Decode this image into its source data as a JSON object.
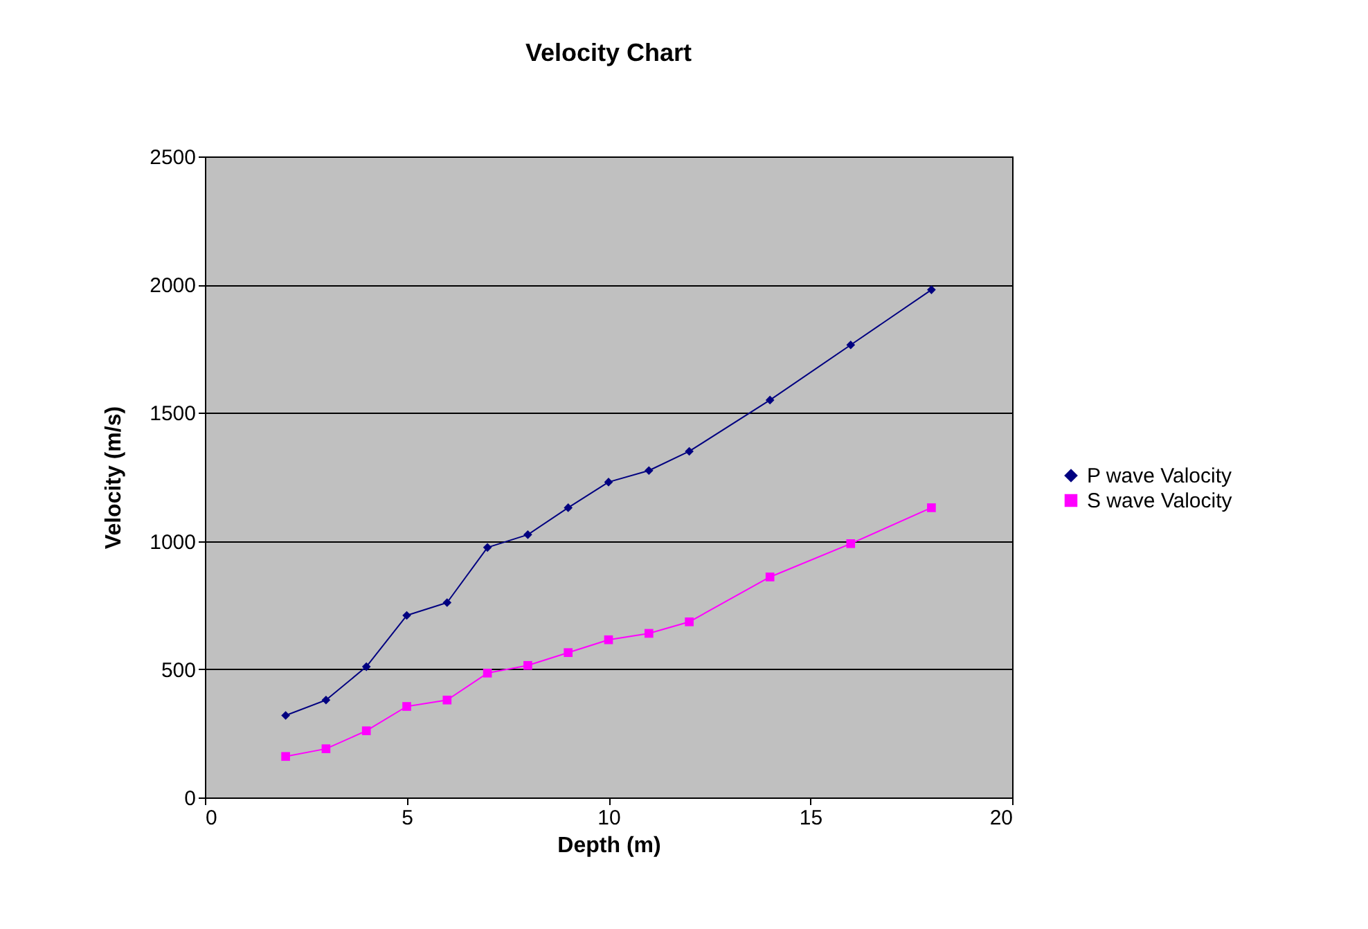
{
  "chart_data": {
    "type": "line",
    "title": "Velocity Chart",
    "xlabel": "Depth (m)",
    "ylabel": "Velocity (m/s)",
    "x": [
      2,
      3,
      4,
      5,
      6,
      7,
      8,
      9,
      10,
      11,
      12,
      14,
      16,
      18
    ],
    "series": [
      {
        "name": "P wave Valocity",
        "color": "#000080",
        "marker": "diamond",
        "values": [
          320,
          380,
          510,
          710,
          760,
          975,
          1025,
          1130,
          1230,
          1275,
          1350,
          1550,
          1765,
          1980
        ]
      },
      {
        "name": "S wave Valocity",
        "color": "#ff00ff",
        "marker": "square",
        "values": [
          160,
          190,
          260,
          355,
          380,
          485,
          515,
          565,
          615,
          640,
          685,
          860,
          990,
          1130
        ]
      }
    ],
    "xlim": [
      0,
      20
    ],
    "xticks": [
      0,
      5,
      10,
      15,
      20
    ],
    "ylim": [
      0,
      2500
    ],
    "yticks": [
      0,
      500,
      1000,
      1500,
      2000,
      2500
    ],
    "grid": "y",
    "legend": "right",
    "line_style": "solid"
  }
}
